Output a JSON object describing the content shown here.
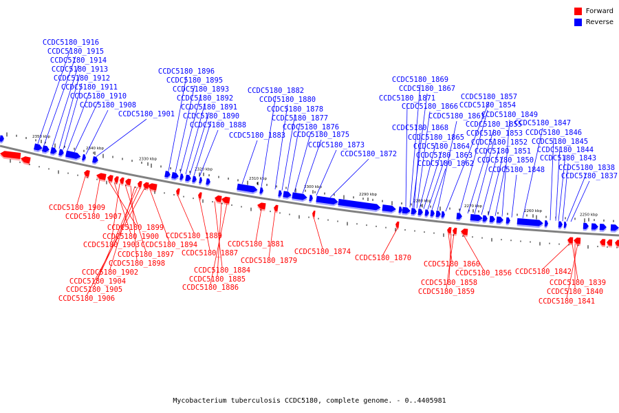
{
  "legend": {
    "forward_label": "Forward",
    "reverse_label": "Reverse",
    "forward_color": "#ff0000",
    "reverse_color": "#0000ff"
  },
  "caption": "Mycobacterium tuberculosis CCDC5180, complete genome. - 0..4405981",
  "colors": {
    "backbone": "#808080",
    "forward": "#ff0000",
    "reverse": "#0000ff",
    "tick": "#000000"
  },
  "scale_labels": [
    "2350 kbp",
    "2340 kbp",
    "2330 kbp",
    "2320 kbp",
    "2310 kbp",
    "2300 kbp",
    "2290 kbp",
    "2280 kbp",
    "2270 kbp",
    "2260 kbp",
    "2250 kbp"
  ],
  "reverse_genes": [
    "CCDC5180_1916",
    "CCDC5180_1915",
    "CCDC5180_1914",
    "CCDC5180_1913",
    "CCDC5180_1912",
    "CCDC5180_1911",
    "CCDC5180_1910",
    "CCDC5180_1908",
    "CCDC5180_1901",
    "CCDC5180_1896",
    "CCDC5180_1895",
    "CCDC5180_1893",
    "CCDC5180_1892",
    "CCDC5180_1891",
    "CCDC5180_1890",
    "CCDC5180_1888",
    "CCDC5180_1883",
    "CCDC5180_1882",
    "CCDC5180_1880",
    "CCDC5180_1878",
    "CCDC5180_1877",
    "CCDC5180_1876",
    "CCDC5180_1875",
    "CCDC5180_1873",
    "CCDC5180_1872",
    "CCDC5180_1871",
    "CCDC5180_1869",
    "CCDC5180_1867",
    "CCDC5180_1866",
    "CCDC5180_1868",
    "CCDC5180_1865",
    "CCDC5180_1864",
    "CCDC5180_1863",
    "CCDC5180_1862",
    "CCDC5180_1861",
    "CCDC5180_1857",
    "CCDC5180_1854",
    "CCDC5180_1855",
    "CCDC5180_1853",
    "CCDC5180_1852",
    "CCDC5180_1851",
    "CCDC5180_1850",
    "CCDC5180_1849",
    "CCDC5180_1848",
    "CCDC5180_1847",
    "CCDC5180_1846",
    "CCDC5180_1845",
    "CCDC5180_1844",
    "CCDC5180_1843",
    "CCDC5180_1838",
    "CCDC5180_1837"
  ],
  "forward_genes": [
    "CCDC5180_1909",
    "CCDC5180_1907",
    "CCDC5180_1899",
    "CCDC5180_1900",
    "CCDC5180_1903",
    "CCDC5180_1897",
    "CCDC5180_1898",
    "CCDC5180_1902",
    "CCDC5180_1904",
    "CCDC5180_1905",
    "CCDC5180_1906",
    "CCDC5180_1894",
    "CCDC5180_1889",
    "CCDC5180_1887",
    "CCDC5180_1884",
    "CCDC5180_1885",
    "CCDC5180_1886",
    "CCDC5180_1881",
    "CCDC5180_1879",
    "CCDC5180_1874",
    "CCDC5180_1870",
    "CCDC5180_1860",
    "CCDC5180_1858",
    "CCDC5180_1859",
    "CCDC5180_1856",
    "CCDC5180_1842",
    "CCDC5180_1839",
    "CCDC5180_1840",
    "CCDC5180_1841"
  ]
}
